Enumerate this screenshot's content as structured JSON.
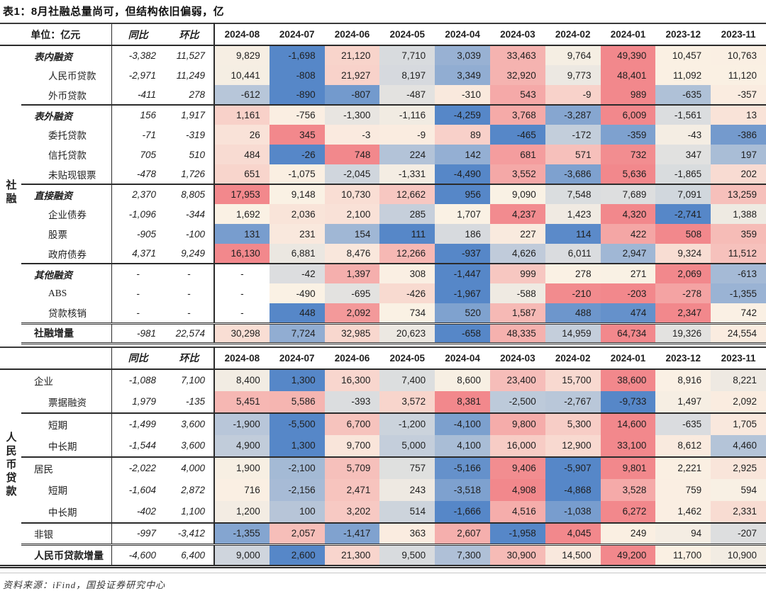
{
  "title": "表1：8月社融总量尚可，但结构依旧偏弱，亿",
  "source": "资料来源：iFind，国投证券研究中心",
  "chart_data": {
    "type": "table",
    "title": "表1：8月社融总量尚可，但结构依旧偏弱，亿",
    "unit_header": "单位：亿元",
    "columns": {
      "yoy": "同比",
      "mom": "环比",
      "months": [
        "2024-08",
        "2024-07",
        "2024-06",
        "2024-05",
        "2024-04",
        "2024-03",
        "2024-02",
        "2024-01",
        "2023-12",
        "2023-11"
      ]
    },
    "heatmap": {
      "low_color": "#5687C8",
      "mid_color": "#FAF1E4",
      "high_color": "#F2888C",
      "midpoint_rule": "row median",
      "scope": "per-row across month columns"
    },
    "sections": [
      {
        "group_label": "社融",
        "rows": [
          {
            "label": "表内融资",
            "variant": "group",
            "indent": 1,
            "sep_above": null,
            "yoy": "-3,382",
            "mom": "11,527",
            "values": [
              9829,
              -1698,
              21120,
              7710,
              3039,
              33463,
              9764,
              49390,
              10457,
              10763
            ]
          },
          {
            "label": "人民币贷款",
            "variant": "sub",
            "indent": 2,
            "sep_above": null,
            "yoy": "-2,971",
            "mom": "11,249",
            "values": [
              10441,
              -808,
              21927,
              8197,
              3349,
              32920,
              9773,
              48401,
              11092,
              11120
            ]
          },
          {
            "label": "外币贷款",
            "variant": "sub",
            "indent": 2,
            "sep_above": null,
            "yoy": "-411",
            "mom": "278",
            "values": [
              -612,
              -890,
              -807,
              -487,
              -310,
              543,
              -9,
              989,
              -635,
              -357
            ]
          },
          {
            "label": "表外融资",
            "variant": "group",
            "indent": 1,
            "sep_above": "thin",
            "yoy": "156",
            "mom": "1,917",
            "values": [
              1161,
              -756,
              -1300,
              -1116,
              -4259,
              3768,
              -3287,
              6009,
              -1561,
              13
            ]
          },
          {
            "label": "委托贷款",
            "variant": "sub",
            "indent": 2,
            "sep_above": null,
            "yoy": "-71",
            "mom": "-319",
            "values": [
              26,
              345,
              -3,
              -9,
              89,
              -465,
              -172,
              -359,
              -43,
              -386
            ]
          },
          {
            "label": "信托贷款",
            "variant": "sub",
            "indent": 2,
            "sep_above": null,
            "yoy": "705",
            "mom": "510",
            "values": [
              484,
              -26,
              748,
              224,
              142,
              681,
              571,
              732,
              347,
              197
            ]
          },
          {
            "label": "未贴现银票",
            "variant": "sub",
            "indent": 2,
            "sep_above": null,
            "yoy": "-478",
            "mom": "1,726",
            "values": [
              651,
              -1075,
              -2045,
              -1331,
              -4490,
              3552,
              -3686,
              5636,
              -1865,
              202
            ]
          },
          {
            "label": "直接融资",
            "variant": "group",
            "indent": 1,
            "sep_above": "thin",
            "yoy": "2,370",
            "mom": "8,805",
            "values": [
              17953,
              9148,
              10730,
              12662,
              956,
              9090,
              7548,
              7689,
              7091,
              13259
            ]
          },
          {
            "label": "企业债券",
            "variant": "sub",
            "indent": 2,
            "sep_above": null,
            "yoy": "-1,096",
            "mom": "-344",
            "values": [
              1692,
              2036,
              2100,
              285,
              1707,
              4237,
              1423,
              4320,
              -2741,
              1388
            ]
          },
          {
            "label": "股票",
            "variant": "sub",
            "indent": 2,
            "sep_above": null,
            "yoy": "-905",
            "mom": "-100",
            "values": [
              131,
              231,
              154,
              111,
              186,
              227,
              114,
              422,
              508,
              359
            ]
          },
          {
            "label": "政府债券",
            "variant": "sub",
            "indent": 2,
            "sep_above": null,
            "yoy": "4,371",
            "mom": "9,249",
            "values": [
              16130,
              6881,
              8476,
              12266,
              -937,
              4626,
              6011,
              2947,
              9324,
              11512
            ]
          },
          {
            "label": "其他融资",
            "variant": "group",
            "indent": 1,
            "sep_above": "thin",
            "yoy": "-",
            "mom": "-",
            "values": [
              "-",
              -42,
              1397,
              308,
              -1447,
              999,
              278,
              271,
              2069,
              -613
            ]
          },
          {
            "label": "ABS",
            "variant": "sub",
            "indent": 2,
            "sep_above": null,
            "yoy": "-",
            "mom": "-",
            "values": [
              "-",
              -490,
              -695,
              -426,
              -1967,
              -588,
              -210,
              -203,
              -278,
              -1355
            ]
          },
          {
            "label": "贷款核销",
            "variant": "sub",
            "indent": 2,
            "sep_above": null,
            "yoy": "-",
            "mom": "-",
            "values": [
              "-",
              448,
              2092,
              734,
              520,
              1587,
              488,
              474,
              2347,
              742
            ]
          },
          {
            "label": "社融增量",
            "variant": "total",
            "indent": 1,
            "sep_above": "double",
            "yoy": "-981",
            "mom": "22,574",
            "values": [
              30298,
              7724,
              32985,
              20623,
              -658,
              48335,
              14959,
              64734,
              19326,
              24554
            ]
          }
        ]
      },
      {
        "group_label": "人民币贷款",
        "rows": [
          {
            "label": "企业",
            "variant": "plain",
            "indent": 1,
            "sep_above": null,
            "yoy": "-1,088",
            "mom": "7,100",
            "values": [
              8400,
              1300,
              16300,
              7400,
              8600,
              23400,
              15700,
              38600,
              8916,
              8221
            ]
          },
          {
            "label": "票据融资",
            "variant": "sub",
            "indent": 2,
            "sep_above": null,
            "yoy": "1,979",
            "mom": "-135",
            "values": [
              5451,
              5586,
              -393,
              3572,
              8381,
              -2500,
              -2767,
              -9733,
              1497,
              2092
            ]
          },
          {
            "label": "短期",
            "variant": "sub",
            "indent": 2,
            "sep_above": "thin",
            "yoy": "-1,499",
            "mom": "3,600",
            "values": [
              -1900,
              -5500,
              6700,
              -1200,
              -4100,
              9800,
              5300,
              14600,
              -635,
              1705
            ]
          },
          {
            "label": "中长期",
            "variant": "sub",
            "indent": 2,
            "sep_above": null,
            "yoy": "-1,544",
            "mom": "3,600",
            "values": [
              4900,
              1300,
              9700,
              5000,
              4100,
              16000,
              12900,
              33100,
              8612,
              4460
            ]
          },
          {
            "label": "居民",
            "variant": "plain",
            "indent": 1,
            "sep_above": "thin",
            "yoy": "-2,022",
            "mom": "4,000",
            "values": [
              1900,
              -2100,
              5709,
              757,
              -5166,
              9406,
              -5907,
              9801,
              2221,
              2925
            ]
          },
          {
            "label": "短期",
            "variant": "sub",
            "indent": 2,
            "sep_above": null,
            "yoy": "-1,604",
            "mom": "2,872",
            "values": [
              716,
              -2156,
              2471,
              243,
              -3518,
              4908,
              -4868,
              3528,
              759,
              594
            ]
          },
          {
            "label": "中长期",
            "variant": "sub",
            "indent": 2,
            "sep_above": null,
            "yoy": "-402",
            "mom": "1,100",
            "values": [
              1200,
              100,
              3202,
              514,
              -1666,
              4516,
              -1038,
              6272,
              1462,
              2331
            ]
          },
          {
            "label": "非银",
            "variant": "plain",
            "indent": 1,
            "sep_above": "thin",
            "yoy": "-997",
            "mom": "-3,412",
            "values": [
              -1355,
              2057,
              -1417,
              363,
              2607,
              -1958,
              4045,
              249,
              94,
              -207
            ]
          },
          {
            "label": "人民币贷款增量",
            "variant": "total",
            "indent": 1,
            "sep_above": "double",
            "yoy": "-4,600",
            "mom": "6,400",
            "values": [
              9000,
              2600,
              21300,
              9500,
              7300,
              30900,
              14500,
              49200,
              11700,
              10900
            ]
          }
        ]
      }
    ]
  }
}
